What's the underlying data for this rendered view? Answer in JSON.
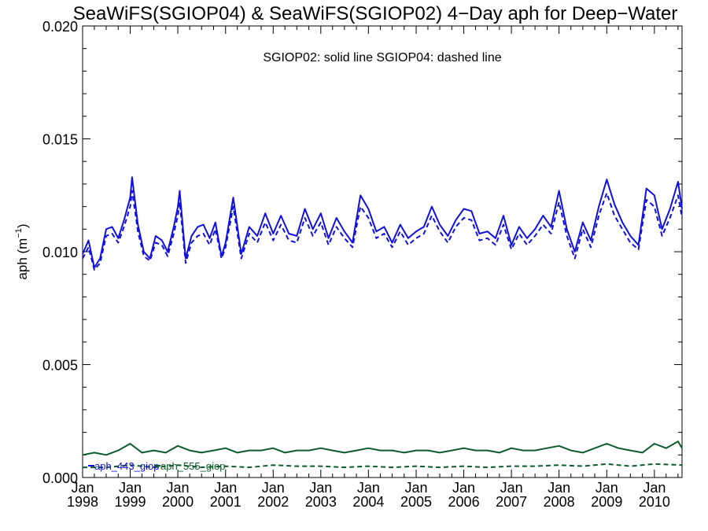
{
  "chart_data": {
    "type": "line",
    "title": "SeaWiFS(SGIOP04) & SeaWiFS(SGIOP02) 4−Day aph for Deep−Water",
    "annotation": "SGIOP02: solid line   SGIOP04: dashed line",
    "ylabel_main": "aph (m",
    "ylabel_sup": "−1",
    "ylabel_close": ")",
    "xlabel": "",
    "xlim": [
      "1998-01-01",
      "2010-08-01"
    ],
    "ylim": [
      0,
      0.02
    ],
    "y_ticks": [
      "0.000",
      "0.005",
      "0.010",
      "0.015",
      "0.020"
    ],
    "x_ticks": [
      {
        "month": "Jan",
        "year": "1998"
      },
      {
        "month": "Jan",
        "year": "1999"
      },
      {
        "month": "Jan",
        "year": "2000"
      },
      {
        "month": "Jan",
        "year": "2001"
      },
      {
        "month": "Jan",
        "year": "2002"
      },
      {
        "month": "Jan",
        "year": "2003"
      },
      {
        "month": "Jan",
        "year": "2004"
      },
      {
        "month": "Jan",
        "year": "2005"
      },
      {
        "month": "Jan",
        "year": "2006"
      },
      {
        "month": "Jan",
        "year": "2007"
      },
      {
        "month": "Jan",
        "year": "2008"
      },
      {
        "month": "Jan",
        "year": "2009"
      },
      {
        "month": "Jan",
        "year": "2010"
      }
    ],
    "legend": [
      {
        "label": "aph_443_giop",
        "color": "#1010e0"
      },
      {
        "label": "aph_555_giop",
        "color": "#0d5c2c"
      }
    ],
    "legend_placement": "bottom-left",
    "grid": false,
    "series": [
      {
        "name": "aph_443_giop",
        "style": "solid",
        "color": "#1010e0",
        "x": [
          "1998-01-01",
          "1998-02-15",
          "1998-04-01",
          "1998-05-15",
          "1998-07-01",
          "1998-08-15",
          "1998-10-01",
          "1998-11-15",
          "1999-01-01",
          "1999-01-15",
          "1999-03-01",
          "1999-04-15",
          "1999-06-01",
          "1999-07-15",
          "1999-09-01",
          "1999-10-15",
          "1999-12-01",
          "2000-01-01",
          "2000-01-15",
          "2000-03-01",
          "2000-04-15",
          "2000-06-01",
          "2000-07-15",
          "2000-09-01",
          "2000-10-15",
          "2000-12-01",
          "2001-01-01",
          "2001-03-01",
          "2001-05-01",
          "2001-07-01",
          "2001-09-01",
          "2001-11-01",
          "2002-01-01",
          "2002-03-01",
          "2002-05-01",
          "2002-07-01",
          "2002-09-01",
          "2002-11-01",
          "2003-01-01",
          "2003-03-01",
          "2003-05-01",
          "2003-07-01",
          "2003-09-01",
          "2003-11-01",
          "2004-01-01",
          "2004-03-01",
          "2004-05-01",
          "2004-07-01",
          "2004-09-01",
          "2004-11-01",
          "2005-01-01",
          "2005-03-01",
          "2005-05-01",
          "2005-07-01",
          "2005-09-01",
          "2005-11-01",
          "2006-01-01",
          "2006-03-01",
          "2006-05-01",
          "2006-07-01",
          "2006-09-01",
          "2006-11-01",
          "2007-01-01",
          "2007-03-01",
          "2007-05-01",
          "2007-07-01",
          "2007-09-01",
          "2007-11-01",
          "2008-01-01",
          "2008-03-01",
          "2008-05-01",
          "2008-07-01",
          "2008-09-01",
          "2008-11-01",
          "2009-01-01",
          "2009-03-01",
          "2009-05-01",
          "2009-07-01",
          "2009-09-01",
          "2009-11-01",
          "2010-01-01",
          "2010-03-01",
          "2010-05-01",
          "2010-07-01",
          "2010-08-01"
        ],
        "values": [
          0.0099,
          0.0105,
          0.0093,
          0.0097,
          0.011,
          0.0111,
          0.0106,
          0.0114,
          0.0124,
          0.0133,
          0.0112,
          0.01,
          0.0097,
          0.0107,
          0.0105,
          0.01,
          0.0111,
          0.012,
          0.0127,
          0.0097,
          0.0107,
          0.0111,
          0.0112,
          0.0106,
          0.0113,
          0.0098,
          0.0104,
          0.0124,
          0.0099,
          0.0111,
          0.0107,
          0.0117,
          0.0108,
          0.0116,
          0.0108,
          0.0107,
          0.0119,
          0.011,
          0.0117,
          0.0106,
          0.0115,
          0.0109,
          0.0104,
          0.0125,
          0.0119,
          0.0109,
          0.0111,
          0.0104,
          0.0112,
          0.0106,
          0.0109,
          0.0111,
          0.012,
          0.0112,
          0.0107,
          0.0114,
          0.0119,
          0.0118,
          0.0108,
          0.0109,
          0.0106,
          0.0116,
          0.0103,
          0.0111,
          0.0106,
          0.011,
          0.0116,
          0.0111,
          0.0127,
          0.011,
          0.01,
          0.0113,
          0.0105,
          0.012,
          0.0132,
          0.0121,
          0.0113,
          0.0107,
          0.0103,
          0.0128,
          0.0125,
          0.011,
          0.0119,
          0.0131,
          0.0119
        ]
      },
      {
        "name": "aph_443_giop",
        "style": "dashed",
        "color": "#1010e0",
        "x": [
          "1998-01-01",
          "1998-02-15",
          "1998-04-01",
          "1998-05-15",
          "1998-07-01",
          "1998-08-15",
          "1998-10-01",
          "1998-11-15",
          "1999-01-01",
          "1999-01-15",
          "1999-03-01",
          "1999-04-15",
          "1999-06-01",
          "1999-07-15",
          "1999-09-01",
          "1999-10-15",
          "1999-12-01",
          "2000-01-01",
          "2000-01-15",
          "2000-03-01",
          "2000-04-15",
          "2000-06-01",
          "2000-07-15",
          "2000-09-01",
          "2000-10-15",
          "2000-12-01",
          "2001-01-01",
          "2001-03-01",
          "2001-05-01",
          "2001-07-01",
          "2001-09-01",
          "2001-11-01",
          "2002-01-01",
          "2002-03-01",
          "2002-05-01",
          "2002-07-01",
          "2002-09-01",
          "2002-11-01",
          "2003-01-01",
          "2003-03-01",
          "2003-05-01",
          "2003-07-01",
          "2003-09-01",
          "2003-11-01",
          "2004-01-01",
          "2004-03-01",
          "2004-05-01",
          "2004-07-01",
          "2004-09-01",
          "2004-11-01",
          "2005-01-01",
          "2005-03-01",
          "2005-05-01",
          "2005-07-01",
          "2005-09-01",
          "2005-11-01",
          "2006-01-01",
          "2006-03-01",
          "2006-05-01",
          "2006-07-01",
          "2006-09-01",
          "2006-11-01",
          "2007-01-01",
          "2007-03-01",
          "2007-05-01",
          "2007-07-01",
          "2007-09-01",
          "2007-11-01",
          "2008-01-01",
          "2008-03-01",
          "2008-05-01",
          "2008-07-01",
          "2008-09-01",
          "2008-11-01",
          "2009-01-01",
          "2009-03-01",
          "2009-05-01",
          "2009-07-01",
          "2009-09-01",
          "2009-11-01",
          "2010-01-01",
          "2010-03-01",
          "2010-05-01",
          "2010-07-01",
          "2010-08-01"
        ],
        "values": [
          0.0097,
          0.0102,
          0.0092,
          0.0095,
          0.0107,
          0.0108,
          0.0104,
          0.0111,
          0.012,
          0.0127,
          0.0109,
          0.0098,
          0.0096,
          0.0104,
          0.0103,
          0.0098,
          0.0108,
          0.0116,
          0.0122,
          0.0095,
          0.0104,
          0.0107,
          0.0108,
          0.0103,
          0.011,
          0.0097,
          0.0102,
          0.012,
          0.0097,
          0.0108,
          0.0104,
          0.0113,
          0.0105,
          0.0112,
          0.0105,
          0.0104,
          0.0115,
          0.0107,
          0.0113,
          0.0103,
          0.0111,
          0.0106,
          0.0102,
          0.012,
          0.0115,
          0.0106,
          0.0108,
          0.0102,
          0.0109,
          0.0103,
          0.0106,
          0.0108,
          0.0116,
          0.0109,
          0.0104,
          0.0111,
          0.0115,
          0.0114,
          0.0105,
          0.0106,
          0.0103,
          0.0112,
          0.0101,
          0.0108,
          0.0103,
          0.0107,
          0.0112,
          0.0108,
          0.0122,
          0.0107,
          0.0097,
          0.011,
          0.0102,
          0.0116,
          0.0126,
          0.0116,
          0.011,
          0.0104,
          0.0101,
          0.0123,
          0.012,
          0.0107,
          0.0115,
          0.0125,
          0.0115
        ]
      },
      {
        "name": "aph_555_giop",
        "style": "solid",
        "color": "#0d5c2c",
        "x": [
          "1998-01-01",
          "1998-04-01",
          "1998-07-01",
          "1998-10-01",
          "1999-01-01",
          "1999-04-01",
          "1999-07-01",
          "1999-10-01",
          "2000-01-01",
          "2000-04-01",
          "2000-07-01",
          "2000-10-01",
          "2001-01-01",
          "2001-04-01",
          "2001-07-01",
          "2001-10-01",
          "2002-01-01",
          "2002-04-01",
          "2002-07-01",
          "2002-10-01",
          "2003-01-01",
          "2003-04-01",
          "2003-07-01",
          "2003-10-01",
          "2004-01-01",
          "2004-04-01",
          "2004-07-01",
          "2004-10-01",
          "2005-01-01",
          "2005-04-01",
          "2005-07-01",
          "2005-10-01",
          "2006-01-01",
          "2006-04-01",
          "2006-07-01",
          "2006-10-01",
          "2007-01-01",
          "2007-04-01",
          "2007-07-01",
          "2007-10-01",
          "2008-01-01",
          "2008-04-01",
          "2008-07-01",
          "2008-10-01",
          "2009-01-01",
          "2009-04-01",
          "2009-07-01",
          "2009-10-01",
          "2010-01-01",
          "2010-04-01",
          "2010-07-01",
          "2010-08-01"
        ],
        "values": [
          0.001,
          0.0011,
          0.001,
          0.0012,
          0.0015,
          0.0011,
          0.0012,
          0.0011,
          0.0014,
          0.0012,
          0.0011,
          0.0012,
          0.0013,
          0.0011,
          0.0012,
          0.0012,
          0.0013,
          0.0011,
          0.0012,
          0.0012,
          0.0013,
          0.0012,
          0.0011,
          0.0012,
          0.0013,
          0.0012,
          0.0012,
          0.0011,
          0.0012,
          0.0012,
          0.0011,
          0.0012,
          0.0013,
          0.0012,
          0.0012,
          0.0011,
          0.0013,
          0.0012,
          0.0012,
          0.0013,
          0.0014,
          0.0012,
          0.0011,
          0.0013,
          0.0015,
          0.0013,
          0.0012,
          0.0011,
          0.0015,
          0.0013,
          0.0016,
          0.0013
        ]
      },
      {
        "name": "aph_555_giop",
        "style": "dashed",
        "color": "#0d5c2c",
        "x": [
          "1998-01-01",
          "1998-07-01",
          "1999-01-01",
          "1999-07-01",
          "2000-01-01",
          "2000-07-01",
          "2001-01-01",
          "2001-07-01",
          "2002-01-01",
          "2002-07-01",
          "2003-01-01",
          "2003-07-01",
          "2004-01-01",
          "2004-07-01",
          "2005-01-01",
          "2005-07-01",
          "2006-01-01",
          "2006-07-01",
          "2007-01-01",
          "2007-07-01",
          "2008-01-01",
          "2008-07-01",
          "2009-01-01",
          "2009-07-01",
          "2010-01-01",
          "2010-08-01"
        ],
        "values": [
          0.00045,
          0.00045,
          0.00055,
          0.00045,
          0.00055,
          0.00045,
          0.0005,
          0.00045,
          0.00055,
          0.0005,
          0.0005,
          0.00045,
          0.0005,
          0.00045,
          0.0005,
          0.00045,
          0.0005,
          0.00045,
          0.0005,
          0.0005,
          0.00055,
          0.0005,
          0.0006,
          0.0005,
          0.0006,
          0.00055
        ]
      }
    ]
  }
}
